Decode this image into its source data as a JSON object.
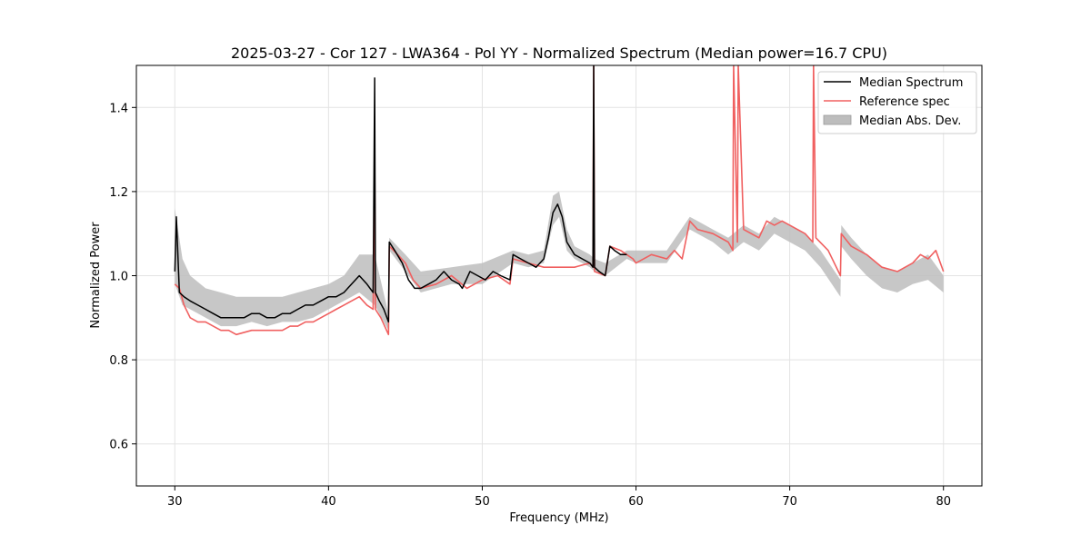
{
  "chart_data": {
    "type": "line",
    "title": "2025-03-27 - Cor 127 - LWA364 - Pol YY - Normalized Spectrum (Median power=16.7 CPU)",
    "xlabel": "Frequency (MHz)",
    "ylabel": "Normalized Power",
    "xlim": [
      27.5,
      82.5
    ],
    "ylim": [
      0.5,
      1.5
    ],
    "xticks": [
      30,
      40,
      50,
      60,
      70,
      80
    ],
    "yticks": [
      0.6,
      0.8,
      1.0,
      1.2,
      1.4
    ],
    "grid": true,
    "legend_position": "top-right",
    "colors": {
      "median": "#000000",
      "reference": "#f06060",
      "mad_band": "#bdbdbd",
      "overlap": "#8b0000"
    },
    "series": [
      {
        "name": "Median Spectrum",
        "x": [
          30.0,
          30.1,
          30.3,
          30.6,
          31.0,
          31.5,
          32.0,
          32.5,
          33.0,
          33.5,
          34.0,
          34.5,
          35.0,
          35.5,
          36.0,
          36.5,
          37.0,
          37.5,
          38.0,
          38.5,
          39.0,
          39.5,
          40.0,
          40.5,
          41.0,
          41.5,
          42.0,
          42.5,
          42.9,
          43.0,
          43.05,
          43.3,
          43.6,
          43.9,
          43.95,
          44.3,
          44.8,
          45.2,
          45.6,
          46.0,
          46.5,
          47.0,
          47.5,
          48.0,
          48.5,
          48.7,
          49.2,
          49.7,
          50.2,
          50.7,
          51.2,
          51.8,
          52.0,
          52.5,
          53.0,
          53.5,
          54.0,
          54.3,
          54.6,
          54.9,
          55.2,
          55.5,
          56.0,
          56.5,
          57.0,
          57.2,
          57.25,
          57.3,
          57.6,
          58.0,
          58.3,
          58.6,
          59.0,
          59.4
        ],
        "values": [
          1.01,
          1.14,
          0.96,
          0.95,
          0.94,
          0.93,
          0.92,
          0.91,
          0.9,
          0.9,
          0.9,
          0.9,
          0.91,
          0.91,
          0.9,
          0.9,
          0.91,
          0.91,
          0.92,
          0.93,
          0.93,
          0.94,
          0.95,
          0.95,
          0.96,
          0.98,
          1.0,
          0.98,
          0.96,
          1.47,
          0.96,
          0.94,
          0.92,
          0.89,
          1.08,
          1.06,
          1.03,
          0.99,
          0.97,
          0.97,
          0.98,
          0.99,
          1.01,
          0.99,
          0.98,
          0.97,
          1.01,
          1.0,
          0.99,
          1.01,
          1.0,
          0.99,
          1.05,
          1.04,
          1.03,
          1.02,
          1.04,
          1.09,
          1.15,
          1.17,
          1.14,
          1.08,
          1.05,
          1.04,
          1.03,
          1.02,
          1.5,
          1.02,
          1.01,
          1.0,
          1.07,
          1.06,
          1.05,
          1.05
        ]
      },
      {
        "name": "Reference spec",
        "x": [
          30.0,
          30.3,
          30.6,
          31.0,
          31.5,
          32.0,
          32.5,
          33.0,
          33.5,
          34.0,
          35.0,
          36.0,
          37.0,
          37.5,
          38.0,
          38.5,
          39.0,
          39.5,
          40.0,
          40.5,
          41.0,
          41.5,
          42.0,
          42.5,
          42.9,
          43.0,
          43.05,
          43.4,
          43.9,
          43.95,
          44.5,
          45.0,
          45.5,
          46.0,
          47.0,
          48.0,
          49.0,
          50.0,
          51.0,
          51.8,
          52.0,
          53.0,
          54.0,
          55.0,
          56.0,
          57.0,
          57.2,
          57.25,
          57.3,
          58.0,
          58.3,
          59.0,
          59.4,
          59.8,
          60.0,
          61.0,
          62.0,
          62.5,
          63.0,
          63.5,
          64.0,
          65.0,
          66.0,
          66.3,
          66.35,
          66.6,
          66.65,
          67.0,
          68.0,
          68.5,
          69.0,
          69.5,
          70.0,
          71.0,
          71.5,
          71.55,
          71.7,
          72.5,
          73.3,
          73.35,
          74.0,
          75.0,
          76.0,
          77.0,
          78.0,
          78.5,
          79.0,
          79.5,
          80.0
        ],
        "values": [
          0.98,
          0.97,
          0.93,
          0.9,
          0.89,
          0.89,
          0.88,
          0.87,
          0.87,
          0.86,
          0.87,
          0.87,
          0.87,
          0.88,
          0.88,
          0.89,
          0.89,
          0.9,
          0.91,
          0.92,
          0.93,
          0.94,
          0.95,
          0.93,
          0.92,
          1.28,
          0.92,
          0.9,
          0.86,
          1.07,
          1.05,
          1.03,
          0.99,
          0.97,
          0.98,
          1.0,
          0.97,
          0.99,
          1.0,
          0.98,
          1.04,
          1.03,
          1.02,
          1.02,
          1.02,
          1.03,
          1.02,
          1.5,
          1.01,
          1.0,
          1.07,
          1.06,
          1.05,
          1.04,
          1.03,
          1.05,
          1.04,
          1.06,
          1.04,
          1.13,
          1.11,
          1.1,
          1.08,
          1.06,
          1.5,
          1.08,
          1.5,
          1.11,
          1.09,
          1.13,
          1.12,
          1.13,
          1.12,
          1.1,
          1.08,
          1.5,
          1.09,
          1.06,
          1.0,
          1.1,
          1.07,
          1.05,
          1.02,
          1.01,
          1.03,
          1.05,
          1.04,
          1.06,
          1.01
        ]
      }
    ],
    "band": {
      "name": "Median Abs. Dev.",
      "x": [
        30.0,
        30.5,
        31.0,
        32.0,
        33.0,
        34.0,
        35.0,
        36.0,
        37.0,
        38.0,
        39.0,
        40.0,
        41.0,
        42.0,
        43.0,
        43.9,
        43.95,
        45.0,
        46.0,
        48.0,
        50.0,
        52.0,
        53.0,
        54.0,
        54.6,
        55.0,
        55.5,
        56.0,
        57.0,
        57.3,
        58.0,
        59.4,
        60.0,
        62.0,
        63.5,
        64.0,
        65.0,
        66.0,
        67.0,
        68.0,
        69.0,
        70.0,
        71.0,
        72.0,
        73.3,
        73.35,
        74.0,
        75.0,
        76.0,
        77.0,
        78.0,
        79.0,
        80.0
      ],
      "lower": [
        0.98,
        0.93,
        0.92,
        0.9,
        0.88,
        0.88,
        0.89,
        0.88,
        0.89,
        0.89,
        0.9,
        0.92,
        0.94,
        0.96,
        0.93,
        0.87,
        1.06,
        1.01,
        0.96,
        0.98,
        0.98,
        1.03,
        1.02,
        1.03,
        1.12,
        1.14,
        1.06,
        1.04,
        1.02,
        1.01,
        1.0,
        1.04,
        1.03,
        1.03,
        1.11,
        1.1,
        1.08,
        1.05,
        1.08,
        1.06,
        1.1,
        1.08,
        1.06,
        1.02,
        0.95,
        1.07,
        1.04,
        1.0,
        0.97,
        0.96,
        0.98,
        0.99,
        0.96
      ],
      "upper": [
        1.16,
        1.04,
        1.0,
        0.97,
        0.96,
        0.95,
        0.95,
        0.95,
        0.95,
        0.96,
        0.97,
        0.98,
        1.0,
        1.05,
        1.05,
        0.91,
        1.09,
        1.05,
        1.01,
        1.02,
        1.03,
        1.06,
        1.05,
        1.06,
        1.19,
        1.2,
        1.11,
        1.07,
        1.05,
        1.04,
        1.03,
        1.06,
        1.06,
        1.06,
        1.14,
        1.13,
        1.11,
        1.09,
        1.12,
        1.1,
        1.14,
        1.12,
        1.1,
        1.06,
        0.99,
        1.12,
        1.09,
        1.05,
        1.02,
        1.01,
        1.03,
        1.05,
        1.0
      ]
    }
  }
}
